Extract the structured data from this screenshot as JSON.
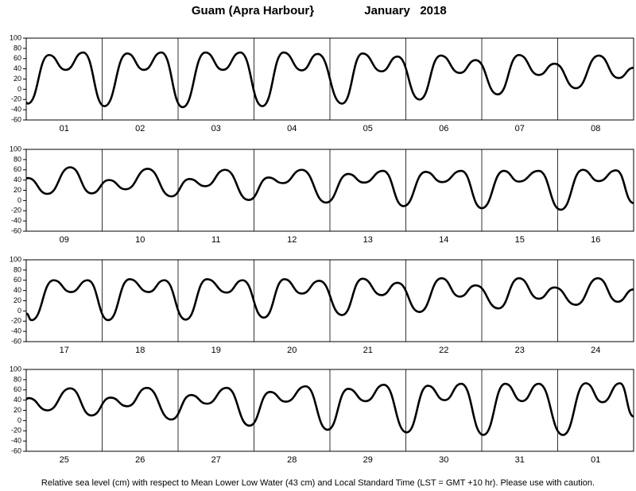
{
  "header": {
    "title": "Guam (Apra Harbour}",
    "date": "January   2018"
  },
  "footer": "Relative sea level (cm) with respect to Mean Lower Low Water (43 cm) and Local Standard Time (LST = GMT +10 hr). Please use with caution.",
  "chart_data": [
    {
      "type": "line",
      "color": "#000000",
      "xlim": [
        0,
        8
      ],
      "ylim": [
        -60,
        100
      ],
      "yticks": [
        -60,
        -40,
        -20,
        0,
        20,
        40,
        60,
        80,
        100
      ],
      "categories": [
        "01",
        "02",
        "03",
        "04",
        "05",
        "06",
        "07",
        "08"
      ],
      "x": [
        0,
        0.02,
        0.3,
        0.52,
        0.75,
        1.03,
        1.33,
        1.55,
        1.78,
        2.06,
        2.36,
        2.59,
        2.82,
        3.11,
        3.39,
        3.63,
        3.84,
        4.16,
        4.43,
        4.68,
        4.89,
        5.18,
        5.46,
        5.71,
        5.92,
        6.21,
        6.49,
        6.75,
        6.96,
        7.24,
        7.54,
        7.8,
        8
      ],
      "values": [
        -26,
        -28,
        67,
        38,
        72,
        -33,
        70,
        38,
        72,
        -35,
        72,
        38,
        72,
        -33,
        72,
        37,
        69,
        -28,
        70,
        35,
        64,
        -20,
        66,
        32,
        57,
        -10,
        67,
        28,
        50,
        2,
        66,
        22,
        42
      ]
    },
    {
      "type": "line",
      "color": "#000000",
      "xlim": [
        0,
        8
      ],
      "ylim": [
        -60,
        100
      ],
      "yticks": [
        -60,
        -40,
        -20,
        0,
        20,
        40,
        60,
        80,
        100
      ],
      "categories": [
        "09",
        "10",
        "11",
        "12",
        "13",
        "14",
        "15",
        "16"
      ],
      "x": [
        0,
        0.02,
        0.28,
        0.58,
        0.86,
        1.09,
        1.31,
        1.6,
        1.91,
        2.15,
        2.36,
        2.62,
        2.93,
        3.19,
        3.38,
        3.63,
        3.95,
        4.24,
        4.45,
        4.7,
        4.97,
        5.26,
        5.48,
        5.73,
        6,
        6.29,
        6.49,
        6.75,
        7.04,
        7.33,
        7.54,
        7.77,
        8
      ],
      "values": [
        43,
        44,
        13,
        65,
        14,
        40,
        22,
        62,
        8,
        42,
        28,
        60,
        1,
        45,
        34,
        60,
        -4,
        52,
        35,
        58,
        -11,
        56,
        36,
        58,
        -15,
        58,
        37,
        58,
        -18,
        60,
        38,
        59,
        -5
      ]
    },
    {
      "type": "line",
      "color": "#000000",
      "xlim": [
        0,
        8
      ],
      "ylim": [
        -60,
        100
      ],
      "yticks": [
        -60,
        -40,
        -20,
        0,
        20,
        40,
        60,
        80,
        100
      ],
      "categories": [
        "17",
        "18",
        "19",
        "20",
        "21",
        "22",
        "23",
        "24"
      ],
      "x": [
        0,
        0.07,
        0.36,
        0.59,
        0.81,
        1.08,
        1.36,
        1.61,
        1.82,
        2.1,
        2.38,
        2.64,
        2.85,
        3.13,
        3.4,
        3.63,
        3.86,
        4.16,
        4.43,
        4.68,
        4.89,
        5.18,
        5.47,
        5.71,
        5.92,
        6.22,
        6.49,
        6.75,
        6.96,
        7.24,
        7.53,
        7.79,
        8
      ],
      "values": [
        -5,
        -18,
        60,
        37,
        60,
        -18,
        62,
        37,
        60,
        -17,
        62,
        36,
        60,
        -13,
        62,
        34,
        59,
        -8,
        63,
        31,
        55,
        -2,
        64,
        28,
        50,
        5,
        64,
        24,
        46,
        12,
        64,
        18,
        42
      ]
    },
    {
      "type": "line",
      "color": "#000000",
      "xlim": [
        0,
        8
      ],
      "ylim": [
        -60,
        100
      ],
      "yticks": [
        -60,
        -40,
        -20,
        0,
        20,
        40,
        60,
        80,
        100
      ],
      "categories": [
        "25",
        "26",
        "27",
        "28",
        "29",
        "30",
        "31",
        "01"
      ],
      "x": [
        0,
        0.03,
        0.28,
        0.58,
        0.86,
        1.11,
        1.33,
        1.59,
        1.91,
        2.17,
        2.38,
        2.64,
        2.94,
        3.21,
        3.42,
        3.68,
        3.97,
        4.24,
        4.47,
        4.71,
        5.01,
        5.29,
        5.51,
        5.73,
        6.02,
        6.31,
        6.53,
        6.75,
        7.07,
        7.37,
        7.59,
        7.82,
        8
      ],
      "values": [
        42,
        44,
        20,
        63,
        10,
        45,
        28,
        64,
        2,
        50,
        33,
        64,
        -10,
        56,
        37,
        67,
        -18,
        62,
        38,
        70,
        -23,
        68,
        40,
        72,
        -28,
        72,
        38,
        72,
        -28,
        73,
        36,
        73,
        8
      ]
    }
  ]
}
